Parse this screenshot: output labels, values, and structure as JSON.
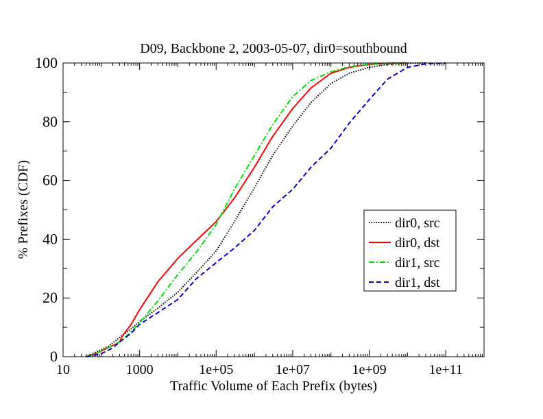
{
  "chart_data": {
    "type": "line",
    "title": "D09, Backbone 2, 2003-05-07, dir0=southbound",
    "xlabel": "Traffic Volume of Each Prefix (bytes)",
    "ylabel": "% Prefixes (CDF)",
    "xscale": "log",
    "xlim": [
      10,
      1000000000000.0
    ],
    "ylim": [
      0,
      100
    ],
    "x_ticks": [
      {
        "value": 10,
        "label": "10"
      },
      {
        "value": 1000,
        "label": "1000"
      },
      {
        "value": 100000,
        "label": "1e+05"
      },
      {
        "value": 10000000,
        "label": "1e+07"
      },
      {
        "value": 1000000000,
        "label": "1e+09"
      },
      {
        "value": 100000000000,
        "label": "1e+11"
      }
    ],
    "y_ticks": [
      {
        "value": 0,
        "label": "0"
      },
      {
        "value": 20,
        "label": "20"
      },
      {
        "value": 40,
        "label": "40"
      },
      {
        "value": 60,
        "label": "60"
      },
      {
        "value": 80,
        "label": "80"
      },
      {
        "value": 100,
        "label": "100"
      }
    ],
    "grid": false,
    "legend_position": "right",
    "series": [
      {
        "name": "dir0, src",
        "color": "#000000",
        "dash": "dotted",
        "x": [
          40,
          70,
          150,
          300,
          600,
          1000,
          3000,
          10000,
          30000,
          100000,
          300000,
          1000000,
          3000000,
          10000000,
          30000000,
          100000000,
          300000000,
          1000000000,
          3000000000,
          10000000000,
          30000000000
        ],
        "y": [
          0,
          1.5,
          3.5,
          6.5,
          9.5,
          12,
          16.5,
          22,
          28.5,
          36,
          46,
          57.5,
          68.5,
          78.5,
          86.5,
          93,
          96.5,
          98.5,
          99.5,
          99.9,
          100
        ]
      },
      {
        "name": "dir0, dst",
        "color": "#ff0000",
        "dash": "solid",
        "x": [
          40,
          70,
          150,
          300,
          350,
          600,
          1000,
          3000,
          10000,
          30000,
          100000,
          300000,
          1000000,
          3000000,
          10000000,
          30000000,
          100000000,
          300000000,
          1000000000,
          3000000000,
          10000000000
        ],
        "y": [
          0,
          1,
          3,
          5,
          7,
          11,
          16,
          25.5,
          33.5,
          39.5,
          46,
          54,
          64.5,
          75,
          84.5,
          91.5,
          96.5,
          98.5,
          99.5,
          99.9,
          100
        ]
      },
      {
        "name": "dir1, src",
        "color": "#00dd00",
        "dash": "dashdot",
        "x": [
          40,
          70,
          150,
          300,
          600,
          1000,
          3000,
          10000,
          30000,
          100000,
          300000,
          1000000,
          3000000,
          10000000,
          30000000,
          100000000,
          300000000,
          1000000000,
          3000000000,
          10000000000
        ],
        "y": [
          0,
          1,
          3,
          5,
          8.5,
          11.5,
          19,
          28,
          35.5,
          45,
          57,
          68.5,
          79,
          88.5,
          94,
          97,
          98.7,
          99.5,
          99.9,
          100
        ]
      },
      {
        "name": "dir1, dst",
        "color": "#0000cc",
        "dash": "dashed",
        "x": [
          40,
          100,
          200,
          300,
          600,
          1000,
          3000,
          10000,
          30000,
          100000,
          300000,
          1000000,
          3000000,
          10000000,
          30000000,
          100000000,
          300000000,
          1000000000,
          3000000000,
          10000000000,
          30000000000,
          100000000000
        ],
        "y": [
          0,
          1,
          3,
          5,
          8,
          11,
          15,
          19.5,
          26.5,
          32,
          37,
          43,
          51,
          57,
          64.5,
          71,
          79.5,
          87.5,
          94.5,
          98.5,
          99.7,
          100
        ]
      }
    ]
  }
}
